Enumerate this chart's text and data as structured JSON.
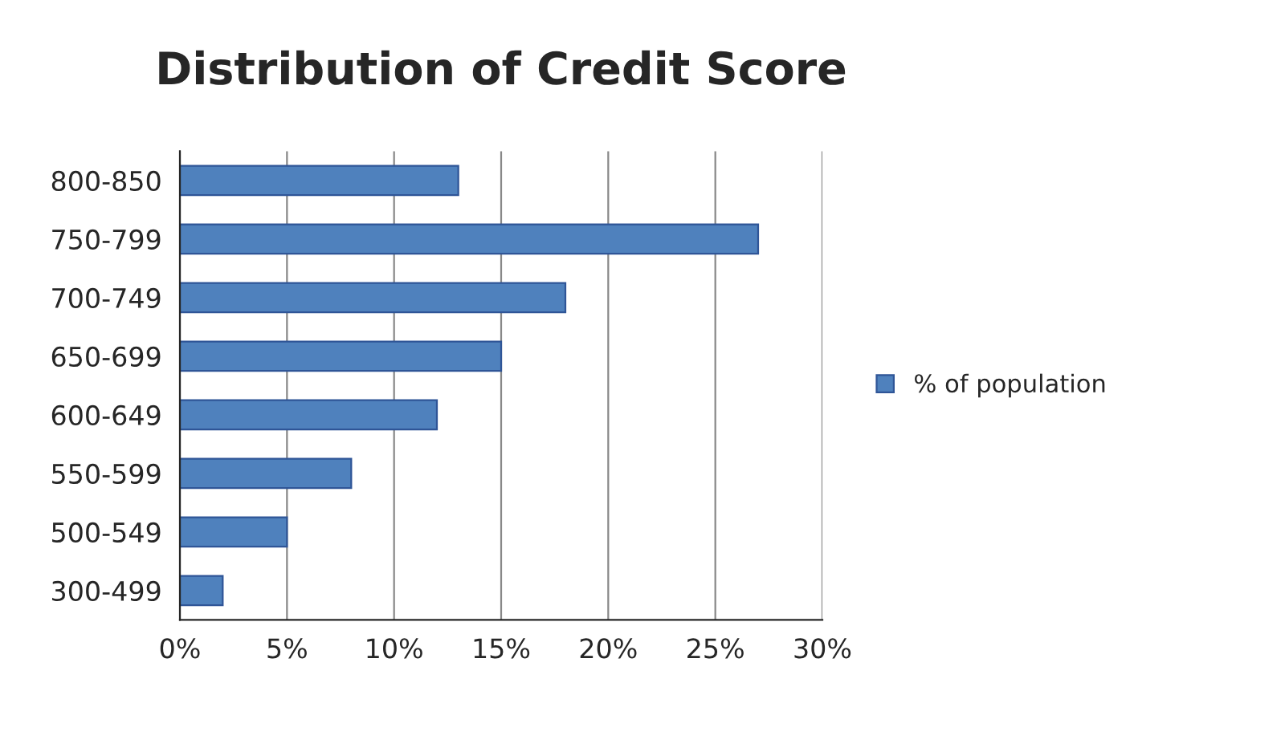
{
  "chart_data": {
    "type": "bar",
    "orientation": "horizontal",
    "title": "Distribution of Credit Score",
    "categories": [
      "800-850",
      "750-799",
      "700-749",
      "650-699",
      "600-649",
      "550-599",
      "500-549",
      "300-499"
    ],
    "series": [
      {
        "name": "% of population",
        "color": "#4f81bd",
        "values": [
          13,
          27,
          18,
          15,
          12,
          8,
          5,
          2
        ]
      }
    ],
    "xlim": [
      0,
      30
    ],
    "xticks": [
      {
        "value": 0,
        "label": "0%"
      },
      {
        "value": 5,
        "label": "5%"
      },
      {
        "value": 10,
        "label": "10%"
      },
      {
        "value": 15,
        "label": "15%"
      },
      {
        "value": 20,
        "label": "20%"
      },
      {
        "value": 25,
        "label": "25%"
      },
      {
        "value": 30,
        "label": "30%"
      }
    ],
    "grid": "x",
    "legend": "right"
  }
}
